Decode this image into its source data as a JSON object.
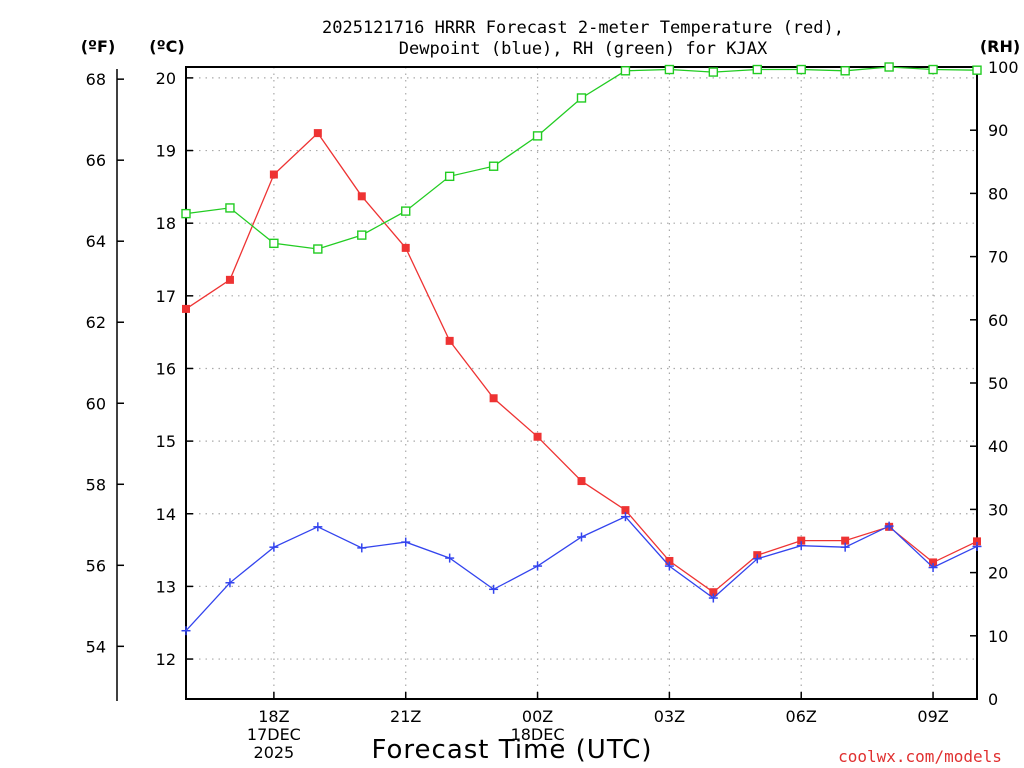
{
  "chart_data": {
    "type": "line",
    "title_line1": "2025121716 HRRR Forecast 2-meter Temperature (red),",
    "title_line2": "Dewpoint (blue), RH (green) for KJAX",
    "xlabel": "Forecast Time (UTC)",
    "credit": "coolwx.com/models",
    "left_outer_axis": {
      "unit": "(ºF)",
      "range": [
        52.7,
        68.3
      ],
      "ticks": [
        "54",
        "56",
        "58",
        "60",
        "62",
        "64",
        "66",
        "68"
      ]
    },
    "left_inner_axis": {
      "unit": "(ºC)",
      "range": [
        11.45,
        20.15
      ],
      "ticks": [
        "12",
        "13",
        "14",
        "15",
        "16",
        "17",
        "18",
        "19",
        "20"
      ]
    },
    "right_axis": {
      "unit": "(RH)",
      "range": [
        0,
        100
      ],
      "ticks": [
        "0",
        "10",
        "20",
        "30",
        "40",
        "50",
        "60",
        "70",
        "80",
        "90",
        "100"
      ]
    },
    "x_hours": [
      16,
      17,
      18,
      19,
      20,
      21,
      22,
      23,
      24,
      25,
      26,
      27,
      28,
      29,
      30,
      31,
      32,
      33,
      34
    ],
    "x_range": [
      16,
      34
    ],
    "x_ticks": [
      {
        "hour": 18,
        "lines": [
          "18Z",
          "17DEC",
          "2025"
        ]
      },
      {
        "hour": 21,
        "lines": [
          "21Z"
        ]
      },
      {
        "hour": 24,
        "lines": [
          "00Z",
          "18DEC"
        ]
      },
      {
        "hour": 27,
        "lines": [
          "03Z"
        ]
      },
      {
        "hour": 30,
        "lines": [
          "06Z"
        ]
      },
      {
        "hour": 33,
        "lines": [
          "09Z"
        ]
      }
    ],
    "series": [
      {
        "name": "Temperature",
        "color": "#ee3333",
        "marker": "filled-square",
        "values": [
          16.82,
          17.22,
          18.67,
          19.24,
          18.37,
          17.66,
          16.38,
          15.59,
          15.06,
          14.45,
          14.05,
          13.35,
          12.92,
          13.43,
          13.63,
          13.63,
          13.82,
          13.33,
          13.62
        ]
      },
      {
        "name": "Dewpoint",
        "color": "#3344ee",
        "marker": "plus",
        "values": [
          12.39,
          13.05,
          13.54,
          13.82,
          13.53,
          13.61,
          13.39,
          12.96,
          13.28,
          13.68,
          13.96,
          13.28,
          12.84,
          13.38,
          13.56,
          13.54,
          13.83,
          13.26,
          13.55
        ]
      },
      {
        "name": "RH",
        "color": "#22cc22",
        "marker": "open-square",
        "values": [
          76.8,
          77.7,
          72.1,
          71.2,
          73.4,
          77.2,
          82.7,
          84.3,
          89.1,
          95.1,
          99.4,
          99.6,
          99.2,
          99.6,
          99.6,
          99.4,
          100.0,
          99.6,
          99.5
        ]
      }
    ]
  }
}
